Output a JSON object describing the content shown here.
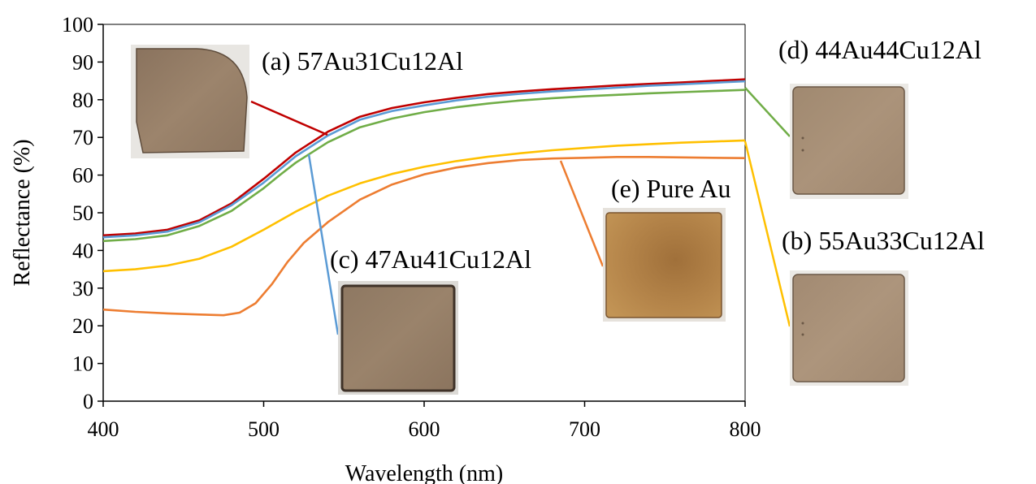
{
  "chart_data": {
    "type": "line",
    "xlabel": "Wavelength (nm)",
    "ylabel": "Reflectance (%)",
    "xlim": [
      400,
      800
    ],
    "ylim": [
      0,
      100
    ],
    "x_ticks": [
      "400",
      "500",
      "600",
      "700",
      "800"
    ],
    "y_ticks": [
      "0",
      "10",
      "20",
      "30",
      "40",
      "50",
      "60",
      "70",
      "80",
      "90",
      "100"
    ],
    "grid": false,
    "series": [
      {
        "name": "(a) 57Au31Cu12Al",
        "color": "#c00000",
        "points": [
          [
            400,
            44
          ],
          [
            420,
            44.5
          ],
          [
            440,
            45.5
          ],
          [
            460,
            48
          ],
          [
            480,
            52.5
          ],
          [
            500,
            59
          ],
          [
            510,
            62.5
          ],
          [
            520,
            66
          ],
          [
            540,
            71.5
          ],
          [
            560,
            75.5
          ],
          [
            580,
            77.8
          ],
          [
            600,
            79.3
          ],
          [
            620,
            80.5
          ],
          [
            640,
            81.5
          ],
          [
            660,
            82.2
          ],
          [
            680,
            82.8
          ],
          [
            700,
            83.3
          ],
          [
            720,
            83.8
          ],
          [
            740,
            84.2
          ],
          [
            760,
            84.6
          ],
          [
            780,
            85
          ],
          [
            800,
            85.4
          ]
        ]
      },
      {
        "name": "(c) 47Au41Cu12Al",
        "color": "#5b9bd5",
        "points": [
          [
            400,
            43.5
          ],
          [
            420,
            44
          ],
          [
            440,
            45
          ],
          [
            460,
            47.5
          ],
          [
            480,
            52
          ],
          [
            500,
            58
          ],
          [
            510,
            61.5
          ],
          [
            520,
            65
          ],
          [
            540,
            70.5
          ],
          [
            560,
            74.7
          ],
          [
            580,
            77
          ],
          [
            600,
            78.5
          ],
          [
            620,
            79.8
          ],
          [
            640,
            80.8
          ],
          [
            660,
            81.6
          ],
          [
            680,
            82.2
          ],
          [
            700,
            82.7
          ],
          [
            720,
            83.2
          ],
          [
            740,
            83.7
          ],
          [
            760,
            84.1
          ],
          [
            780,
            84.5
          ],
          [
            800,
            84.9
          ]
        ]
      },
      {
        "name": "(d) 44Au44Cu12Al",
        "color": "#70ad47",
        "points": [
          [
            400,
            42.5
          ],
          [
            420,
            43
          ],
          [
            440,
            44
          ],
          [
            460,
            46.5
          ],
          [
            480,
            50.5
          ],
          [
            500,
            56.5
          ],
          [
            510,
            60
          ],
          [
            520,
            63.3
          ],
          [
            540,
            68.7
          ],
          [
            560,
            72.7
          ],
          [
            580,
            75
          ],
          [
            600,
            76.7
          ],
          [
            620,
            78
          ],
          [
            640,
            79
          ],
          [
            660,
            79.8
          ],
          [
            680,
            80.4
          ],
          [
            700,
            80.9
          ],
          [
            720,
            81.3
          ],
          [
            740,
            81.7
          ],
          [
            760,
            82
          ],
          [
            780,
            82.3
          ],
          [
            800,
            82.6
          ]
        ]
      },
      {
        "name": "(b) 55Au33Cu12Al",
        "color": "#ffc000",
        "points": [
          [
            400,
            34.5
          ],
          [
            420,
            35
          ],
          [
            440,
            36
          ],
          [
            460,
            37.8
          ],
          [
            480,
            41
          ],
          [
            500,
            45.5
          ],
          [
            520,
            50.3
          ],
          [
            540,
            54.5
          ],
          [
            560,
            57.8
          ],
          [
            580,
            60.3
          ],
          [
            600,
            62.2
          ],
          [
            620,
            63.7
          ],
          [
            640,
            64.9
          ],
          [
            660,
            65.8
          ],
          [
            680,
            66.6
          ],
          [
            700,
            67.2
          ],
          [
            720,
            67.8
          ],
          [
            740,
            68.2
          ],
          [
            760,
            68.6
          ],
          [
            780,
            68.9
          ],
          [
            800,
            69.2
          ]
        ]
      },
      {
        "name": "(e) Pure Au",
        "color": "#ed7d31",
        "points": [
          [
            400,
            24.3
          ],
          [
            420,
            23.7
          ],
          [
            440,
            23.3
          ],
          [
            460,
            23
          ],
          [
            475,
            22.8
          ],
          [
            485,
            23.5
          ],
          [
            495,
            26
          ],
          [
            505,
            31
          ],
          [
            515,
            37
          ],
          [
            525,
            42
          ],
          [
            540,
            47.5
          ],
          [
            560,
            53.5
          ],
          [
            580,
            57.5
          ],
          [
            600,
            60.2
          ],
          [
            620,
            62
          ],
          [
            640,
            63.2
          ],
          [
            660,
            64
          ],
          [
            680,
            64.4
          ],
          [
            700,
            64.6
          ],
          [
            720,
            64.8
          ],
          [
            740,
            64.8
          ],
          [
            760,
            64.7
          ],
          [
            780,
            64.6
          ],
          [
            800,
            64.5
          ]
        ]
      }
    ]
  }
}
